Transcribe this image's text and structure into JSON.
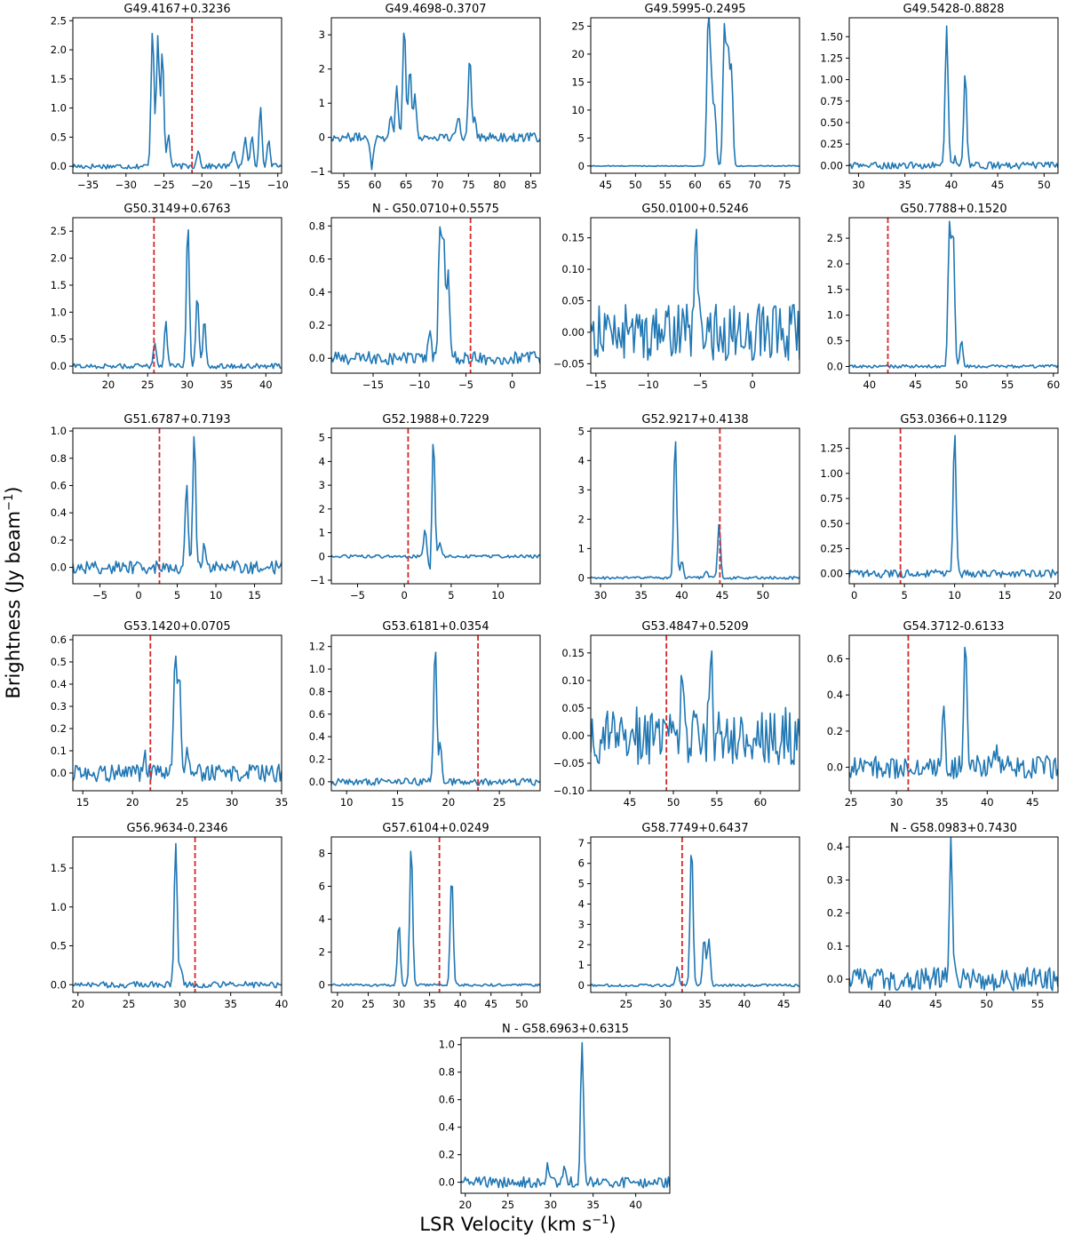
{
  "figure": {
    "ylabel": "Brightness (Jy beam",
    "ylabel_sup": "−1",
    "ylabel_tail": ")",
    "xlabel": "LSR Velocity (km s",
    "xlabel_sup": "−1",
    "xlabel_tail": ")",
    "line_color": "#1f77b4",
    "marker_color": "#d62728"
  },
  "chart_data": [
    {
      "type": "line",
      "title": "G49.4167+0.3236",
      "xlim": [
        -37,
        -9.5
      ],
      "ylim": [
        -0.12,
        2.55
      ],
      "xticks": [
        -35,
        -30,
        -25,
        -20,
        -15,
        -10
      ],
      "yticks": [
        0.0,
        0.5,
        1.0,
        1.5,
        2.0,
        2.5
      ],
      "marker_velocity": -21.3,
      "peaks": [
        {
          "v": -26.5,
          "h": 2.4
        },
        {
          "v": -25.8,
          "h": 2.25
        },
        {
          "v": -25.2,
          "h": 1.95
        },
        {
          "v": -24.4,
          "h": 0.55
        },
        {
          "v": -20.5,
          "h": 0.3
        },
        {
          "v": -15.8,
          "h": 0.3
        },
        {
          "v": -14.3,
          "h": 0.5
        },
        {
          "v": -13.4,
          "h": 0.55
        },
        {
          "v": -12.3,
          "h": 1.0
        },
        {
          "v": -11.2,
          "h": 0.45
        }
      ],
      "noise": 0.03,
      "baseline": 0.0
    },
    {
      "type": "line",
      "title": "G49.4698-0.3707",
      "xlim": [
        53,
        86.5
      ],
      "ylim": [
        -1.05,
        3.5
      ],
      "xticks": [
        55,
        60,
        65,
        70,
        75,
        80,
        85
      ],
      "yticks": [
        -1,
        0,
        1,
        2,
        3
      ],
      "marker_velocity": null,
      "peaks": [
        {
          "v": 59.5,
          "h": -0.85
        },
        {
          "v": 62.5,
          "h": 0.6
        },
        {
          "v": 63.5,
          "h": 1.5
        },
        {
          "v": 64.7,
          "h": 3.35
        },
        {
          "v": 65.6,
          "h": 2.1
        },
        {
          "v": 66.4,
          "h": 1.2
        },
        {
          "v": 73.4,
          "h": 0.6
        },
        {
          "v": 75.2,
          "h": 2.45
        },
        {
          "v": 76.0,
          "h": 0.7
        }
      ],
      "noise": 0.08,
      "baseline": 0.0
    },
    {
      "type": "line",
      "title": "G49.5995-0.2495",
      "xlim": [
        42.5,
        77.5
      ],
      "ylim": [
        -1.3,
        26.5
      ],
      "xticks": [
        45,
        50,
        55,
        60,
        65,
        70,
        75
      ],
      "yticks": [
        0,
        5,
        10,
        15,
        20,
        25
      ],
      "marker_velocity": null,
      "peaks": [
        {
          "v": 62.2,
          "h": 25.8
        },
        {
          "v": 62.7,
          "h": 14.5
        },
        {
          "v": 63.3,
          "h": 10.0
        },
        {
          "v": 64.9,
          "h": 24.5
        },
        {
          "v": 65.5,
          "h": 20.5
        },
        {
          "v": 66.1,
          "h": 17.0
        }
      ],
      "noise": 0.05,
      "baseline": 0.0
    },
    {
      "type": "line",
      "title": "G49.5428-0.8828",
      "xlim": [
        29,
        51.5
      ],
      "ylim": [
        -0.09,
        1.72
      ],
      "xticks": [
        30,
        35,
        40,
        45,
        50
      ],
      "yticks": [
        0.0,
        0.25,
        0.5,
        0.75,
        1.0,
        1.25,
        1.5
      ],
      "marker_velocity": null,
      "peaks": [
        {
          "v": 39.5,
          "h": 1.63
        },
        {
          "v": 41.5,
          "h": 1.12
        },
        {
          "v": 40.4,
          "h": 0.1
        }
      ],
      "noise": 0.025,
      "baseline": 0.0
    },
    {
      "type": "line",
      "title": "G50.3149+0.6763",
      "xlim": [
        15.5,
        42
      ],
      "ylim": [
        -0.13,
        2.75
      ],
      "xticks": [
        20,
        25,
        30,
        35,
        40
      ],
      "yticks": [
        0.0,
        0.5,
        1.0,
        1.5,
        2.0,
        2.5
      ],
      "marker_velocity": 25.8,
      "peaks": [
        {
          "v": 25.9,
          "h": 0.45
        },
        {
          "v": 27.3,
          "h": 0.82
        },
        {
          "v": 30.1,
          "h": 2.63
        },
        {
          "v": 31.3,
          "h": 1.35
        },
        {
          "v": 32.2,
          "h": 0.9
        }
      ],
      "noise": 0.03,
      "baseline": 0.0
    },
    {
      "type": "line",
      "title": "N - G50.0710+0.5575",
      "xlim": [
        -19.5,
        3
      ],
      "ylim": [
        -0.09,
        0.85
      ],
      "xticks": [
        -15,
        -10,
        -5,
        0
      ],
      "yticks": [
        0.0,
        0.2,
        0.4,
        0.6,
        0.8
      ],
      "marker_velocity": -4.5,
      "peaks": [
        {
          "v": -8.9,
          "h": 0.15
        },
        {
          "v": -7.8,
          "h": 0.8
        },
        {
          "v": -7.4,
          "h": 0.72
        },
        {
          "v": -6.9,
          "h": 0.55
        }
      ],
      "noise": 0.025,
      "baseline": 0.0
    },
    {
      "type": "line",
      "title": "G50.0100+0.5246",
      "xlim": [
        -15.5,
        4.5
      ],
      "ylim": [
        -0.065,
        0.182
      ],
      "xticks": [
        -15,
        -10,
        -5,
        0
      ],
      "yticks": [
        -0.05,
        0.0,
        0.05,
        0.1,
        0.15
      ],
      "marker_velocity": null,
      "peaks": [
        {
          "v": -5.4,
          "h": 0.17
        }
      ],
      "noise": 0.028,
      "baseline": 0.0
    },
    {
      "type": "line",
      "title": "G50.7788+0.1520",
      "xlim": [
        37.8,
        60.5
      ],
      "ylim": [
        -0.13,
        2.9
      ],
      "xticks": [
        40,
        45,
        50,
        55,
        60
      ],
      "yticks": [
        0.0,
        0.5,
        1.0,
        1.5,
        2.0,
        2.5
      ],
      "marker_velocity": 42.0,
      "peaks": [
        {
          "v": 48.7,
          "h": 2.75
        },
        {
          "v": 49.1,
          "h": 2.6
        },
        {
          "v": 50.0,
          "h": 0.5
        }
      ],
      "noise": 0.02,
      "baseline": 0.0
    },
    {
      "type": "line",
      "title": "G51.6787+0.7193",
      "xlim": [
        -8.5,
        18.5
      ],
      "ylim": [
        -0.12,
        1.02
      ],
      "xticks": [
        -5,
        0,
        5,
        10,
        15
      ],
      "yticks": [
        0.0,
        0.2,
        0.4,
        0.6,
        0.8,
        1.0
      ],
      "marker_velocity": 2.7,
      "peaks": [
        {
          "v": 6.2,
          "h": 0.6
        },
        {
          "v": 7.2,
          "h": 0.97
        },
        {
          "v": 8.5,
          "h": 0.2
        }
      ],
      "noise": 0.03,
      "baseline": 0.0
    },
    {
      "type": "line",
      "title": "G52.1988+0.7229",
      "xlim": [
        -7.8,
        14.5
      ],
      "ylim": [
        -1.15,
        5.4
      ],
      "xticks": [
        -5,
        0,
        5,
        10
      ],
      "yticks": [
        -1,
        0,
        1,
        2,
        3,
        4,
        5
      ],
      "marker_velocity": 0.4,
      "peaks": [
        {
          "v": 2.2,
          "h": 1.1
        },
        {
          "v": 2.8,
          "h": -0.95
        },
        {
          "v": 3.1,
          "h": 5.15
        },
        {
          "v": 3.8,
          "h": 0.6
        }
      ],
      "noise": 0.04,
      "baseline": 0.0
    },
    {
      "type": "line",
      "title": "G52.9217+0.4138",
      "xlim": [
        28.8,
        54.5
      ],
      "ylim": [
        -0.2,
        5.1
      ],
      "xticks": [
        30,
        35,
        40,
        45,
        50
      ],
      "yticks": [
        0,
        1,
        2,
        3,
        4,
        5
      ],
      "marker_velocity": 44.7,
      "peaks": [
        {
          "v": 39.2,
          "h": 4.85
        },
        {
          "v": 40.0,
          "h": 0.6
        },
        {
          "v": 44.6,
          "h": 1.85
        },
        {
          "v": 43.0,
          "h": 0.25
        }
      ],
      "noise": 0.03,
      "baseline": 0.0
    },
    {
      "type": "line",
      "title": "G53.0366+0.1129",
      "xlim": [
        -0.5,
        20.3
      ],
      "ylim": [
        -0.1,
        1.45
      ],
      "xticks": [
        0,
        5,
        10,
        15,
        20
      ],
      "yticks": [
        0.0,
        0.25,
        0.5,
        0.75,
        1.0,
        1.25
      ],
      "marker_velocity": 4.6,
      "peaks": [
        {
          "v": 10.0,
          "h": 1.4
        }
      ],
      "noise": 0.025,
      "baseline": 0.0
    },
    {
      "type": "line",
      "title": "G53.1420+0.0705",
      "xlim": [
        14,
        35
      ],
      "ylim": [
        -0.08,
        0.62
      ],
      "xticks": [
        15,
        20,
        25,
        30,
        35
      ],
      "yticks": [
        0.0,
        0.1,
        0.2,
        0.3,
        0.4,
        0.5,
        0.6
      ],
      "marker_velocity": 21.8,
      "peaks": [
        {
          "v": 21.2,
          "h": 0.08
        },
        {
          "v": 24.3,
          "h": 0.58
        },
        {
          "v": 24.7,
          "h": 0.45
        },
        {
          "v": 25.5,
          "h": 0.08
        }
      ],
      "noise": 0.025,
      "baseline": 0.0
    },
    {
      "type": "line",
      "title": "G53.6181+0.0354",
      "xlim": [
        8.5,
        29
      ],
      "ylim": [
        -0.08,
        1.3
      ],
      "xticks": [
        10,
        15,
        20,
        25
      ],
      "yticks": [
        0.0,
        0.2,
        0.4,
        0.6,
        0.8,
        1.0,
        1.2
      ],
      "marker_velocity": 22.9,
      "peaks": [
        {
          "v": 18.7,
          "h": 1.23
        },
        {
          "v": 19.2,
          "h": 0.35
        }
      ],
      "noise": 0.02,
      "baseline": 0.0
    },
    {
      "type": "line",
      "title": "G53.4847+0.5209",
      "xlim": [
        40.5,
        64.5
      ],
      "ylim": [
        -0.1,
        0.182
      ],
      "xticks": [
        45,
        50,
        55,
        60
      ],
      "yticks": [
        -0.1,
        -0.05,
        0.0,
        0.05,
        0.1,
        0.15
      ],
      "marker_velocity": 49.2,
      "peaks": [
        {
          "v": 54.3,
          "h": 0.17
        },
        {
          "v": 51.0,
          "h": 0.09
        },
        {
          "v": 52.4,
          "h": 0.08
        }
      ],
      "noise": 0.033,
      "baseline": 0.0
    },
    {
      "type": "line",
      "title": "G54.3712-0.6133",
      "xlim": [
        24.8,
        47.8
      ],
      "ylim": [
        -0.13,
        0.73
      ],
      "xticks": [
        25,
        30,
        35,
        40,
        45
      ],
      "yticks": [
        0.0,
        0.2,
        0.4,
        0.6
      ],
      "marker_velocity": 31.3,
      "peaks": [
        {
          "v": 35.2,
          "h": 0.3
        },
        {
          "v": 37.6,
          "h": 0.7
        },
        {
          "v": 41.0,
          "h": 0.1
        }
      ],
      "noise": 0.04,
      "baseline": 0.0
    },
    {
      "type": "line",
      "title": "G56.9634-0.2346",
      "xlim": [
        19.5,
        40
      ],
      "ylim": [
        -0.1,
        1.9
      ],
      "xticks": [
        20,
        25,
        30,
        35,
        40
      ],
      "yticks": [
        0.0,
        0.5,
        1.0,
        1.5
      ],
      "marker_velocity": 31.5,
      "peaks": [
        {
          "v": 29.6,
          "h": 1.83
        },
        {
          "v": 30.1,
          "h": 0.25
        }
      ],
      "noise": 0.025,
      "baseline": 0.0
    },
    {
      "type": "line",
      "title": "G57.6104+0.0249",
      "xlim": [
        19,
        53
      ],
      "ylim": [
        -0.45,
        9.0
      ],
      "xticks": [
        20,
        25,
        30,
        35,
        40,
        45,
        50
      ],
      "yticks": [
        0,
        2,
        4,
        6,
        8
      ],
      "marker_velocity": 36.6,
      "peaks": [
        {
          "v": 30.0,
          "h": 3.8
        },
        {
          "v": 32.0,
          "h": 8.6
        },
        {
          "v": 38.6,
          "h": 6.75
        }
      ],
      "noise": 0.05,
      "baseline": 0.0
    },
    {
      "type": "line",
      "title": "G58.7749+0.6437",
      "xlim": [
        20.5,
        47
      ],
      "ylim": [
        -0.35,
        7.3
      ],
      "xticks": [
        25,
        30,
        35,
        40,
        45
      ],
      "yticks": [
        0,
        1,
        2,
        3,
        4,
        5,
        6,
        7
      ],
      "marker_velocity": 32.1,
      "peaks": [
        {
          "v": 31.5,
          "h": 0.9
        },
        {
          "v": 33.3,
          "h": 7.0
        },
        {
          "v": 34.9,
          "h": 2.3
        },
        {
          "v": 35.5,
          "h": 2.3
        }
      ],
      "noise": 0.04,
      "baseline": 0.0
    },
    {
      "type": "line",
      "title": "N - G58.0983+0.7430",
      "xlim": [
        36.5,
        57
      ],
      "ylim": [
        -0.04,
        0.43
      ],
      "xticks": [
        40,
        45,
        50,
        55
      ],
      "yticks": [
        0.0,
        0.1,
        0.2,
        0.3,
        0.4
      ],
      "marker_velocity": null,
      "peaks": [
        {
          "v": 46.5,
          "h": 0.41
        }
      ],
      "noise": 0.022,
      "baseline": 0.0
    },
    {
      "type": "line",
      "title": "N - G58.6963+0.6315",
      "xlim": [
        19.5,
        44
      ],
      "ylim": [
        -0.08,
        1.05
      ],
      "xticks": [
        20,
        25,
        30,
        35,
        40
      ],
      "yticks": [
        0.0,
        0.2,
        0.4,
        0.6,
        0.8,
        1.0
      ],
      "marker_velocity": null,
      "peaks": [
        {
          "v": 29.7,
          "h": 0.13
        },
        {
          "v": 31.7,
          "h": 0.12
        },
        {
          "v": 33.7,
          "h": 0.99
        }
      ],
      "noise": 0.025,
      "baseline": 0.0
    }
  ]
}
